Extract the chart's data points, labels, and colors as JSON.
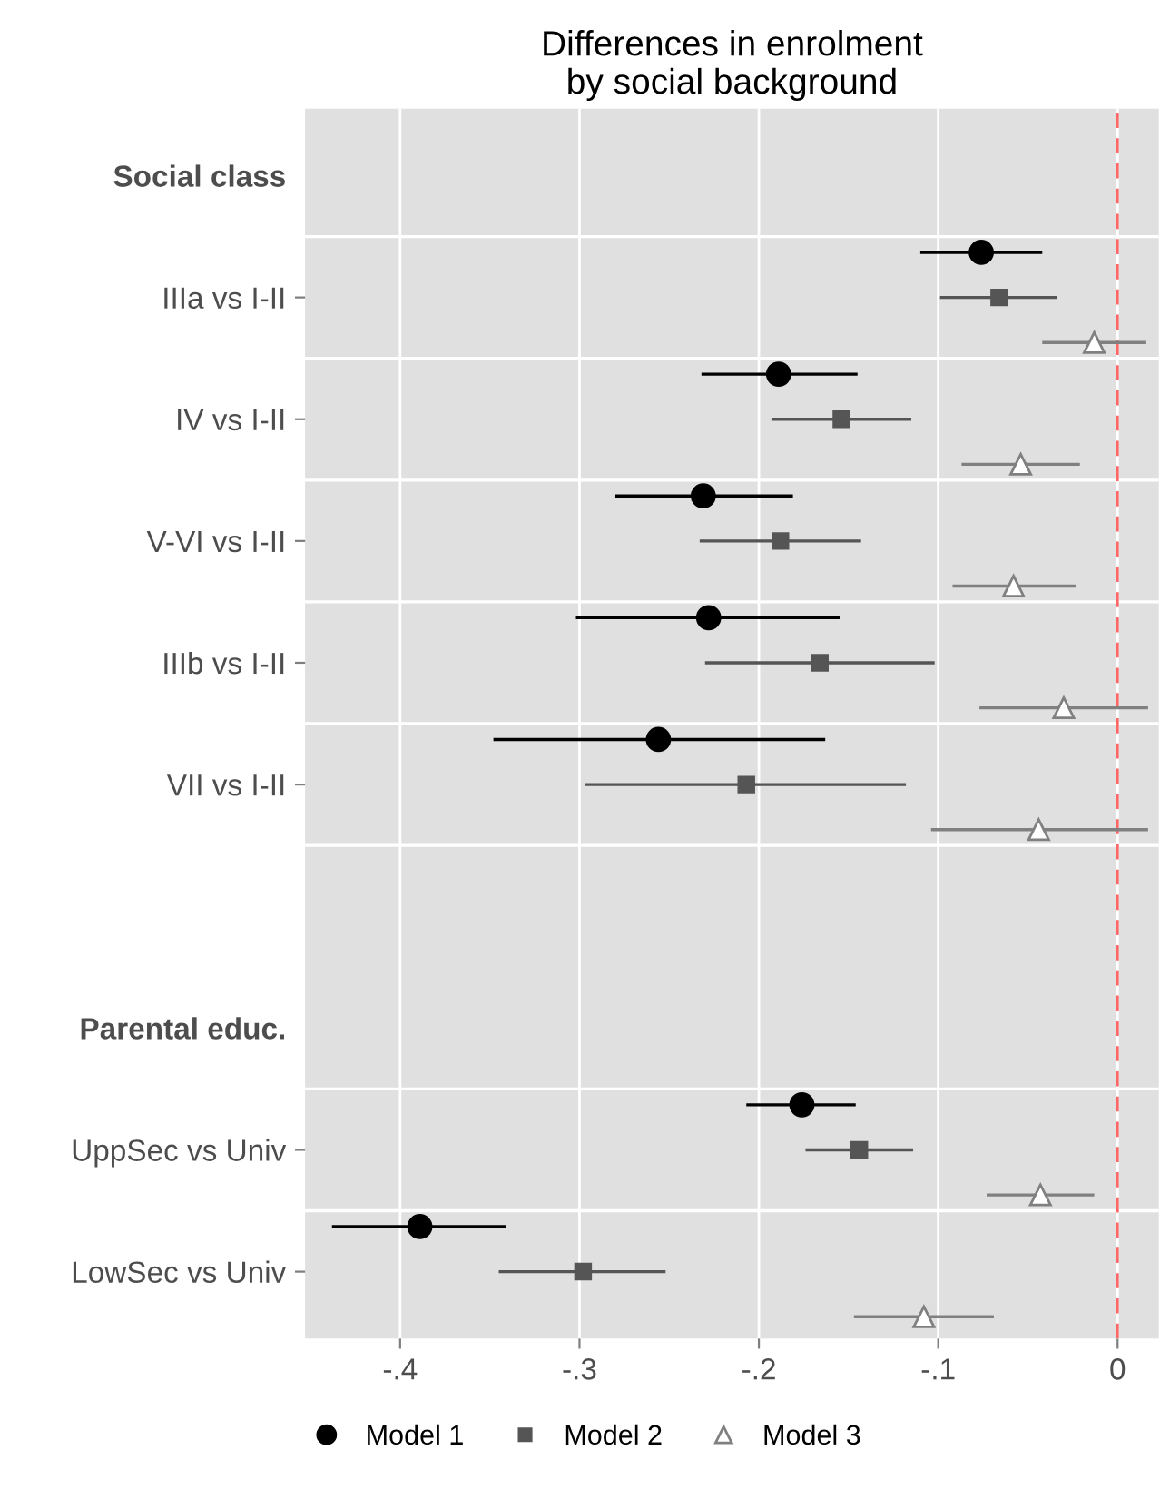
{
  "chart_data": {
    "type": "scatter",
    "orientation": "horizontal",
    "title": "Differences in enrolment\nby social background",
    "categories": [
      "Social class",
      "IIIa vs I-II",
      "IV vs I-II",
      "V-VI vs I-II",
      "IIIb vs I-II",
      "VII vs I-II",
      null,
      "Parental educ.",
      "UppSec vs Univ",
      "LowSec vs Univ"
    ],
    "series": [
      {
        "name": "Model 1",
        "color": "#000000",
        "marker": "circle",
        "values": [
          null,
          -0.076,
          -0.189,
          -0.231,
          -0.228,
          -0.256,
          null,
          null,
          -0.176,
          -0.389
        ],
        "errors": [
          null,
          [
            -0.11,
            -0.042
          ],
          [
            -0.232,
            -0.145
          ],
          [
            -0.28,
            -0.181
          ],
          [
            -0.302,
            -0.155
          ],
          [
            -0.348,
            -0.163
          ],
          null,
          null,
          [
            -0.207,
            -0.146
          ],
          [
            -0.438,
            -0.341
          ]
        ]
      },
      {
        "name": "Model 2",
        "color": "#555555",
        "marker": "square",
        "values": [
          null,
          -0.066,
          -0.154,
          -0.188,
          -0.166,
          -0.207,
          null,
          null,
          -0.144,
          -0.298
        ],
        "errors": [
          null,
          [
            -0.099,
            -0.034
          ],
          [
            -0.193,
            -0.115
          ],
          [
            -0.233,
            -0.143
          ],
          [
            -0.23,
            -0.102
          ],
          [
            -0.297,
            -0.118
          ],
          null,
          null,
          [
            -0.174,
            -0.114
          ],
          [
            -0.345,
            -0.252
          ]
        ]
      },
      {
        "name": "Model 3",
        "color": "#808080",
        "marker": "triangle",
        "values": [
          null,
          -0.013,
          -0.054,
          -0.058,
          -0.03,
          -0.044,
          null,
          null,
          -0.043,
          -0.108
        ],
        "errors": [
          null,
          [
            -0.042,
            0.016
          ],
          [
            -0.087,
            -0.021
          ],
          [
            -0.092,
            -0.023
          ],
          [
            -0.077,
            0.017
          ],
          [
            -0.104,
            0.017
          ],
          null,
          null,
          [
            -0.073,
            -0.013
          ],
          [
            -0.147,
            -0.069
          ]
        ]
      }
    ],
    "xlim": [
      -0.453,
      0.023
    ],
    "xticks": [
      {
        "value": -0.4,
        "label": "-.4"
      },
      {
        "value": -0.3,
        "label": "-.3"
      },
      {
        "value": -0.2,
        "label": "-.2"
      },
      {
        "value": -0.1,
        "label": "-.1"
      },
      0
    ],
    "ref_lines": [
      {
        "axis": "x",
        "value": 0,
        "color": "#ff6666",
        "line_style": "dashed"
      }
    ],
    "grid": true,
    "legend": "bottom"
  }
}
